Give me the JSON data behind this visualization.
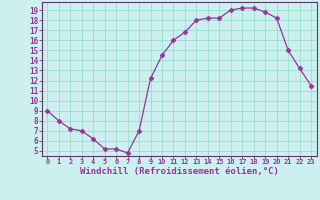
{
  "x": [
    0,
    1,
    2,
    3,
    4,
    5,
    6,
    7,
    8,
    9,
    10,
    11,
    12,
    13,
    14,
    15,
    16,
    17,
    18,
    19,
    20,
    21,
    22,
    23
  ],
  "y": [
    9.0,
    8.0,
    7.2,
    7.0,
    6.2,
    5.2,
    5.2,
    4.8,
    7.0,
    12.2,
    14.5,
    16.0,
    16.8,
    18.0,
    18.2,
    18.2,
    19.0,
    19.2,
    19.2,
    18.8,
    18.2,
    15.0,
    13.2,
    11.5
  ],
  "line_color": "#993399",
  "marker": "D",
  "marker_size": 2.5,
  "bg_color": "#ccf0f0",
  "grid_color": "#99ddcc",
  "xlabel": "Windchill (Refroidissement éolien,°C)",
  "xlabel_fontsize": 6.5,
  "ytick_labels": [
    "5",
    "6",
    "7",
    "8",
    "9",
    "10",
    "11",
    "12",
    "13",
    "14",
    "15",
    "16",
    "17",
    "18",
    "19"
  ],
  "xtick_labels": [
    "0",
    "1",
    "2",
    "3",
    "4",
    "5",
    "6",
    "7",
    "8",
    "9",
    "10",
    "11",
    "12",
    "13",
    "14",
    "15",
    "16",
    "17",
    "18",
    "19",
    "20",
    "21",
    "22",
    "23"
  ],
  "ylim": [
    4.5,
    19.8
  ],
  "xlim": [
    -0.5,
    23.5
  ],
  "yticks": [
    5,
    6,
    7,
    8,
    9,
    10,
    11,
    12,
    13,
    14,
    15,
    16,
    17,
    18,
    19
  ],
  "xticks": [
    0,
    1,
    2,
    3,
    4,
    5,
    6,
    7,
    8,
    9,
    10,
    11,
    12,
    13,
    14,
    15,
    16,
    17,
    18,
    19,
    20,
    21,
    22,
    23
  ],
  "spine_color": "#663366",
  "tick_color": "#993399"
}
